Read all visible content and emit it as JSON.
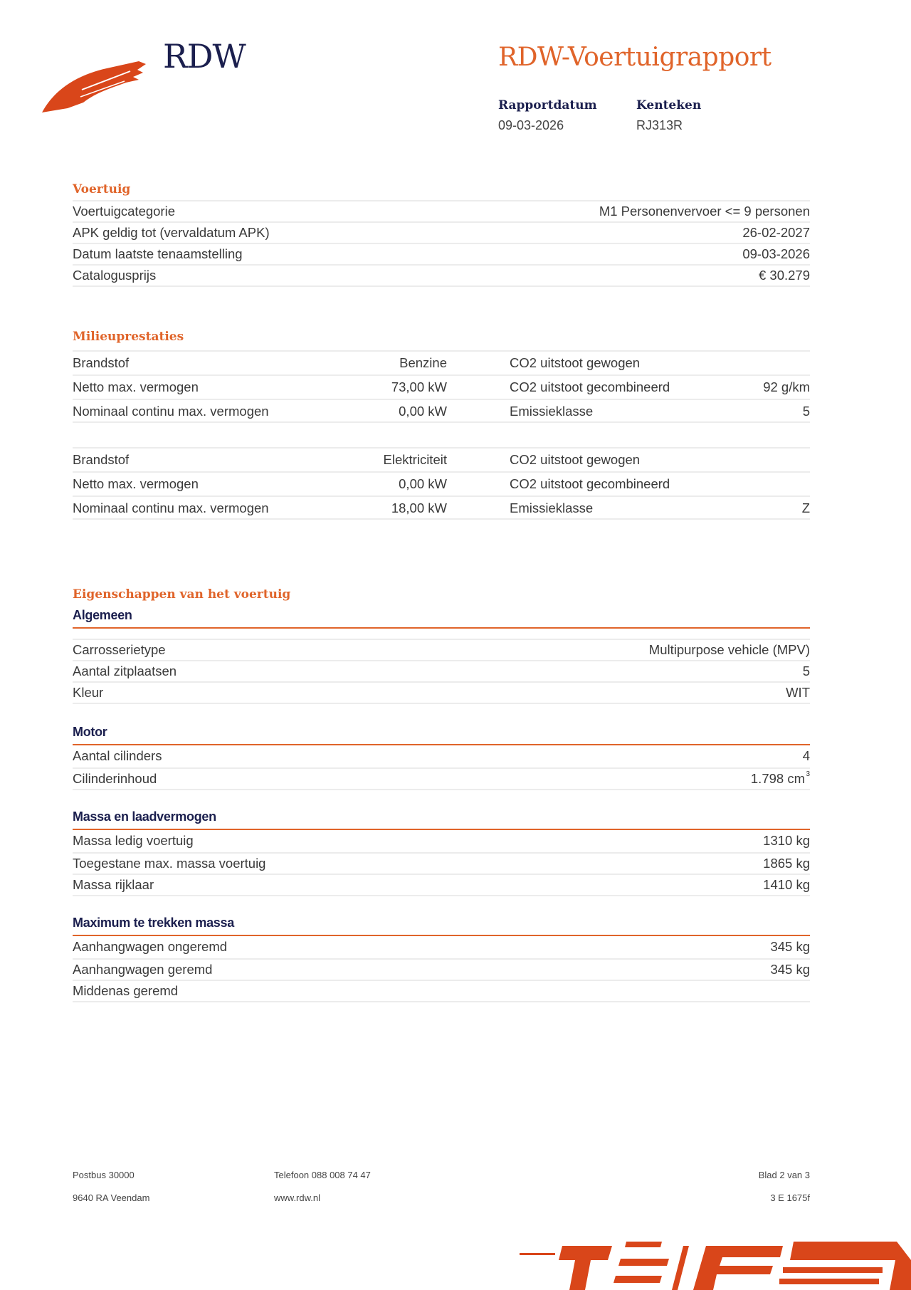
{
  "header": {
    "logo_text": "RDW",
    "title": "RDW-Voertuigrapport",
    "report_date_label": "Rapportdatum",
    "report_date": "09-03-2026",
    "plate_label": "Kenteken",
    "plate": "RJ313R"
  },
  "voertuig": {
    "heading": "Voertuig",
    "rows": [
      {
        "label": "Voertuigcategorie",
        "value": "M1 Personenvervoer <= 9 personen"
      },
      {
        "label": "APK geldig tot (vervaldatum APK)",
        "value": "26-02-2027"
      },
      {
        "label": "Datum laatste tenaamstelling",
        "value": "09-03-2026"
      },
      {
        "label": "Catalogusprijs",
        "value": "€ 30.279"
      }
    ]
  },
  "milieu": {
    "heading": "Milieuprestaties",
    "blocks": [
      {
        "rows": [
          {
            "label": "Brandstof",
            "value": "Benzine",
            "label2": "CO2 uitstoot gewogen",
            "value2": ""
          },
          {
            "label": "Netto max. vermogen",
            "value": "73,00 kW",
            "label2": "CO2 uitstoot gecombineerd",
            "value2": "92 g/km"
          },
          {
            "label": "Nominaal continu max. vermogen",
            "value": "0,00 kW",
            "label2": "Emissieklasse",
            "value2": "5"
          }
        ]
      },
      {
        "rows": [
          {
            "label": "Brandstof",
            "value": "Elektriciteit",
            "label2": "CO2 uitstoot gewogen",
            "value2": ""
          },
          {
            "label": "Netto max. vermogen",
            "value": "0,00 kW",
            "label2": "CO2 uitstoot gecombineerd",
            "value2": ""
          },
          {
            "label": "Nominaal continu max. vermogen",
            "value": "18,00 kW",
            "label2": "Emissieklasse",
            "value2": "Z"
          }
        ]
      }
    ]
  },
  "eigenschappen": {
    "heading": "Eigenschappen van het voertuig",
    "groups": [
      {
        "title": "Algemeen",
        "rows": [
          {
            "label": "Carrosserietype",
            "value": "Multipurpose vehicle (MPV)"
          },
          {
            "label": "Aantal zitplaatsen",
            "value": "5"
          },
          {
            "label": "Kleur",
            "value": "WIT"
          }
        ]
      },
      {
        "title": "Motor",
        "rows": [
          {
            "label": "Aantal cilinders",
            "value": "4"
          },
          {
            "label": "Cilinderinhoud",
            "value": "1.798 cm",
            "sup": "3"
          }
        ]
      },
      {
        "title": "Massa en laadvermogen",
        "rows": [
          {
            "label": "Massa ledig voertuig",
            "value": "1310 kg"
          },
          {
            "label": "Toegestane max. massa voertuig",
            "value": "1865 kg"
          },
          {
            "label": "Massa rijklaar",
            "value": "1410 kg"
          }
        ]
      },
      {
        "title": "Maximum te trekken massa",
        "rows": [
          {
            "label": "Aanhangwagen ongeremd",
            "value": "345 kg"
          },
          {
            "label": "Aanhangwagen geremd",
            "value": "345 kg"
          },
          {
            "label": "Middenas geremd",
            "value": ""
          }
        ]
      }
    ]
  },
  "footer": {
    "address1": "Postbus 30000",
    "address2": "9640 RA Veendam",
    "phone": "Telefoon 088 008 74 47",
    "website": "www.rdw.nl",
    "page": "Blad 2 van 3",
    "code": "3 E 1675f"
  },
  "colors": {
    "accent": "#e0642a",
    "navy": "#1b1f4e"
  }
}
